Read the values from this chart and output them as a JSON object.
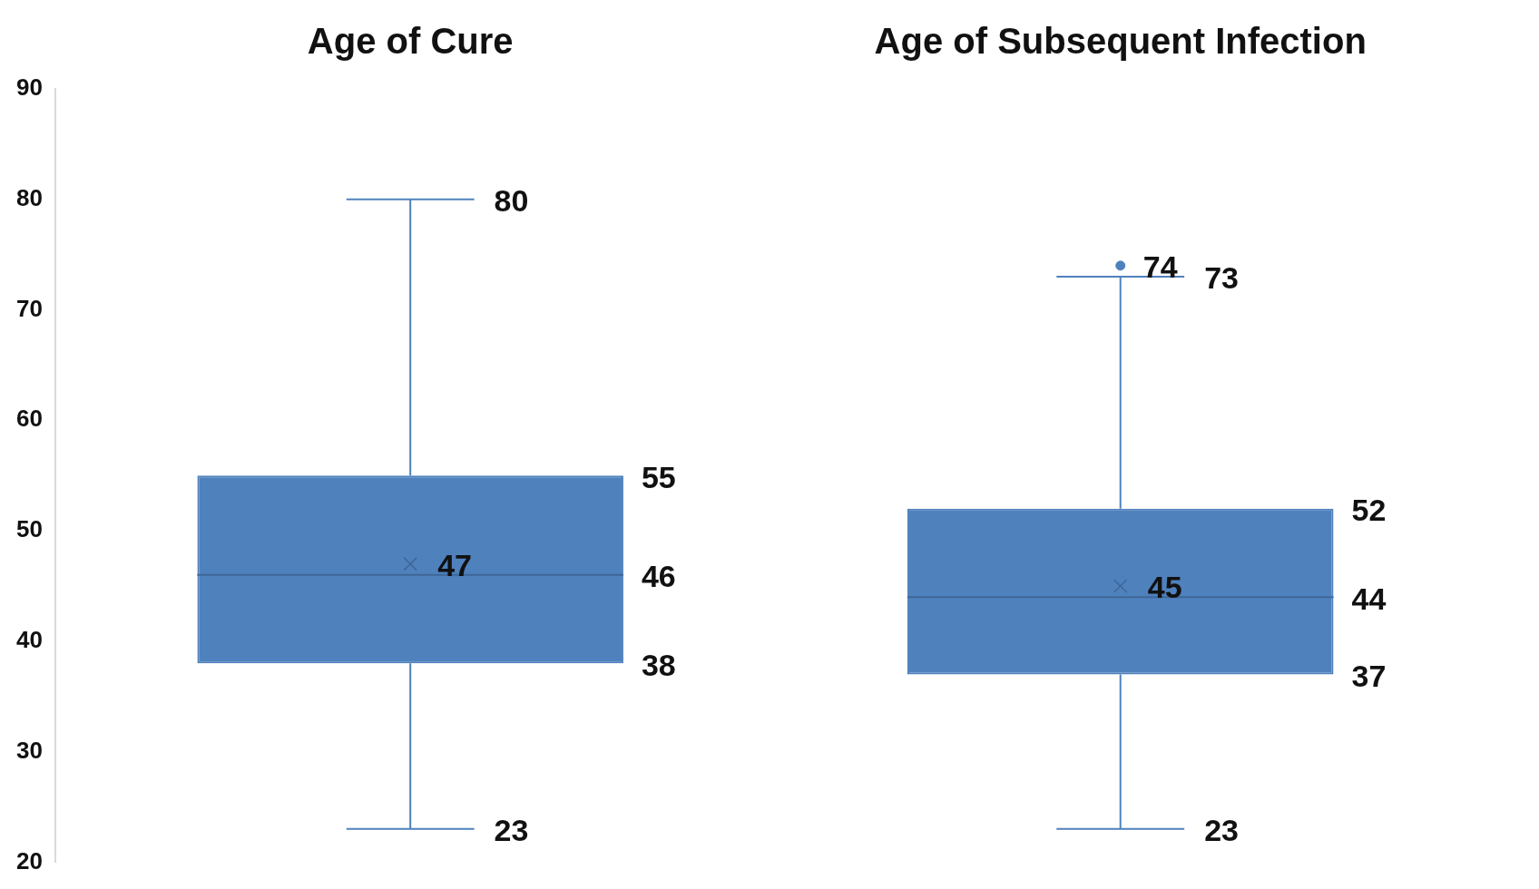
{
  "chart_data": {
    "type": "box",
    "categories": [
      "Age of Cure",
      "Age of Subsequent Infection"
    ],
    "boxes": [
      {
        "low": 23,
        "q1": 38,
        "median": 46,
        "q3": 55,
        "high": 80,
        "mean": 47
      },
      {
        "low": 23,
        "q1": 37,
        "median": 44,
        "q3": 52,
        "high": 73,
        "mean": 45,
        "outliers": [
          74
        ]
      }
    ],
    "color": "#4f81bd",
    "ylim": [
      20,
      90
    ],
    "yticks": [
      20,
      30,
      40,
      50,
      60,
      70,
      80,
      90
    ],
    "annotations": [
      {
        "text": "80",
        "x": "Age of Cure",
        "y": 80
      },
      "55",
      "47",
      "46",
      "38",
      {
        "text": "23",
        "x": "Age of Cure",
        "y": 23
      },
      "74",
      {
        "text": "73",
        "x": "Age of Subsequent Infection",
        "y": 73
      },
      "52",
      "45",
      "44",
      "37",
      {
        "text": "23",
        "x": "Age of Subsequent Infection",
        "y": 23
      }
    ]
  }
}
